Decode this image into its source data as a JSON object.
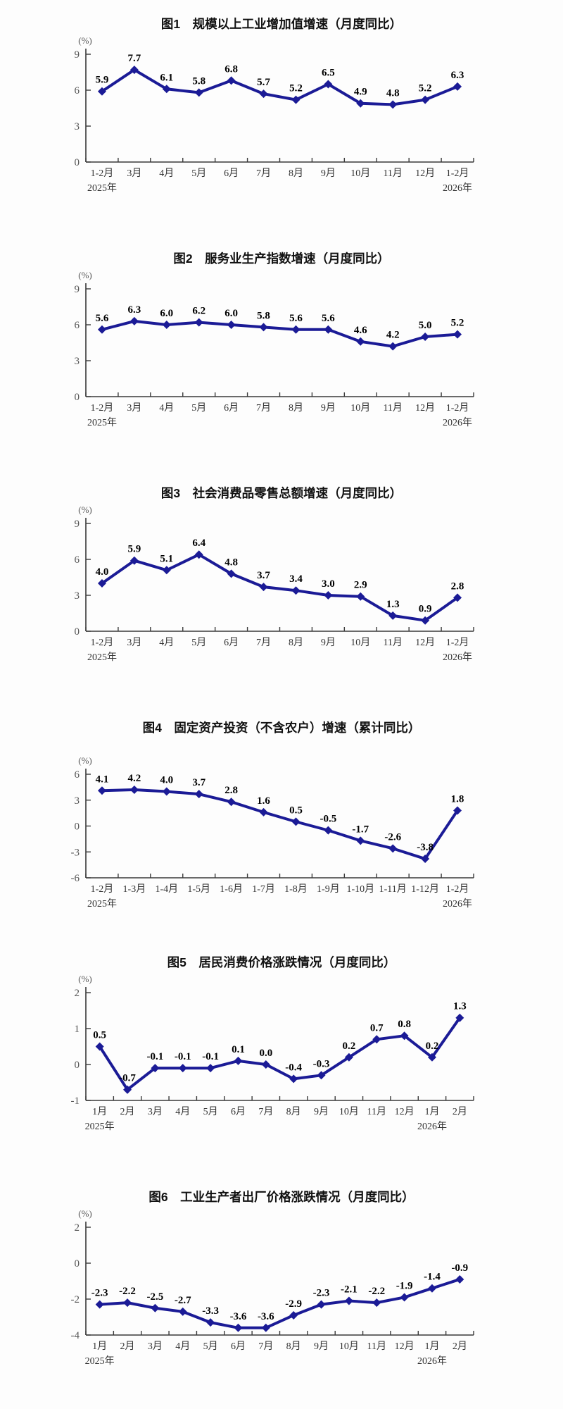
{
  "page": {
    "background": "#fdfdfd",
    "line_color": "#1b1b96",
    "marker": "diamond",
    "axis_color": "#3a3a3a",
    "tick_label_color": "#555555",
    "x_label_color": "#333333",
    "data_label_color": "#000000"
  },
  "chart_data": [
    {
      "type": "line",
      "title": "图1　规模以上工业增加值增速（月度同比）",
      "unit": "(%)",
      "categories": [
        "1-2月",
        "3月",
        "4月",
        "5月",
        "6月",
        "7月",
        "8月",
        "9月",
        "10月",
        "11月",
        "12月",
        "1-2月"
      ],
      "year_labels": [
        {
          "index": 0,
          "text": "2025年"
        },
        {
          "index": 11,
          "text": "2026年"
        }
      ],
      "values": [
        5.9,
        7.7,
        6.1,
        5.8,
        6.8,
        5.7,
        5.2,
        6.5,
        4.9,
        4.8,
        5.2,
        6.3
      ],
      "point_labels": [
        "5.9",
        "7.7",
        "6.1",
        "5.8",
        "6.8",
        "5.7",
        "5.2",
        "6.5",
        "4.9",
        "4.8",
        "5.2",
        "6.3"
      ],
      "y_ticks": [
        9,
        6,
        3,
        0
      ],
      "ylim": [
        0,
        9
      ],
      "grid": false,
      "legend": "none"
    },
    {
      "type": "line",
      "title": "图2　服务业生产指数增速（月度同比）",
      "unit": "(%)",
      "categories": [
        "1-2月",
        "3月",
        "4月",
        "5月",
        "6月",
        "7月",
        "8月",
        "9月",
        "10月",
        "11月",
        "12月",
        "1-2月"
      ],
      "year_labels": [
        {
          "index": 0,
          "text": "2025年"
        },
        {
          "index": 11,
          "text": "2026年"
        }
      ],
      "values": [
        5.6,
        6.3,
        6.0,
        6.2,
        6.0,
        5.8,
        5.6,
        5.6,
        4.6,
        4.2,
        5.0,
        5.2
      ],
      "point_labels": [
        "5.6",
        "6.3",
        "6.0",
        "6.2",
        "6.0",
        "5.8",
        "5.6",
        "5.6",
        "4.6",
        "4.2",
        "5.0",
        "5.2"
      ],
      "y_ticks": [
        9,
        6,
        3,
        0
      ],
      "ylim": [
        0,
        9
      ],
      "grid": false,
      "legend": "none"
    },
    {
      "type": "line",
      "title": "图3　社会消费品零售总额增速（月度同比）",
      "unit": "(%)",
      "categories": [
        "1-2月",
        "3月",
        "4月",
        "5月",
        "6月",
        "7月",
        "8月",
        "9月",
        "10月",
        "11月",
        "12月",
        "1-2月"
      ],
      "year_labels": [
        {
          "index": 0,
          "text": "2025年"
        },
        {
          "index": 11,
          "text": "2026年"
        }
      ],
      "values": [
        4.0,
        5.9,
        5.1,
        6.4,
        4.8,
        3.7,
        3.4,
        3.0,
        2.9,
        1.3,
        0.9,
        2.8
      ],
      "point_labels": [
        "4.0",
        "5.9",
        "5.1",
        "6.4",
        "4.8",
        "3.7",
        "3.4",
        "3.0",
        "2.9",
        "1.3",
        "0.9",
        "2.8"
      ],
      "y_ticks": [
        9,
        6,
        3,
        0
      ],
      "ylim": [
        0,
        9
      ],
      "grid": false,
      "legend": "none"
    },
    {
      "type": "line",
      "title": "图4　固定资产投资（不含农户）增速（累计同比）",
      "unit": "(%)",
      "categories": [
        "1-2月",
        "1-3月",
        "1-4月",
        "1-5月",
        "1-6月",
        "1-7月",
        "1-8月",
        "1-9月",
        "1-10月",
        "1-11月",
        "1-12月",
        "1-2月"
      ],
      "year_labels": [
        {
          "index": 0,
          "text": "2025年"
        },
        {
          "index": 11,
          "text": "2026年"
        }
      ],
      "values": [
        4.1,
        4.2,
        4.0,
        3.7,
        2.8,
        1.6,
        0.5,
        -0.5,
        -1.7,
        -2.6,
        -3.8,
        1.8
      ],
      "point_labels": [
        "4.1",
        "4.2",
        "4.0",
        "3.7",
        "2.8",
        "1.6",
        "0.5",
        "-0.5",
        "-1.7",
        "-2.6",
        "-3.8",
        "1.8"
      ],
      "y_ticks": [
        6,
        3,
        0,
        -3,
        -6
      ],
      "ylim": [
        -6,
        6
      ],
      "grid": false,
      "legend": "none"
    },
    {
      "type": "line",
      "title": "图5　居民消费价格涨跌情况（月度同比）",
      "unit": "(%)",
      "categories": [
        "1月",
        "2月",
        "3月",
        "4月",
        "5月",
        "6月",
        "7月",
        "8月",
        "9月",
        "10月",
        "11月",
        "12月",
        "1月",
        "2月"
      ],
      "year_labels": [
        {
          "index": 0,
          "text": "2025年"
        },
        {
          "index": 12,
          "text": "2026年"
        }
      ],
      "values": [
        0.5,
        -0.7,
        -0.1,
        -0.1,
        -0.1,
        0.1,
        0.0,
        -0.4,
        -0.3,
        0.2,
        0.7,
        0.8,
        0.2,
        1.3
      ],
      "point_labels": [
        "0.5",
        "-0.7",
        "-0.1",
        "-0.1",
        "-0.1",
        "0.1",
        "0.0",
        "-0.4",
        "-0.3",
        "0.2",
        "0.7",
        "0.8",
        "0.2",
        "1.3"
      ],
      "y_ticks": [
        2,
        1,
        0,
        -1
      ],
      "ylim": [
        -1,
        2
      ],
      "grid": false,
      "legend": "none"
    },
    {
      "type": "line",
      "title": "图6　工业生产者出厂价格涨跌情况（月度同比）",
      "unit": "(%)",
      "categories": [
        "1月",
        "2月",
        "3月",
        "4月",
        "5月",
        "6月",
        "7月",
        "8月",
        "9月",
        "10月",
        "11月",
        "12月",
        "1月",
        "2月"
      ],
      "year_labels": [
        {
          "index": 0,
          "text": "2025年"
        },
        {
          "index": 12,
          "text": "2026年"
        }
      ],
      "values": [
        -2.3,
        -2.2,
        -2.5,
        -2.7,
        -3.3,
        -3.6,
        -3.6,
        -2.9,
        -2.3,
        -2.1,
        -2.2,
        -1.9,
        -1.4,
        -0.9
      ],
      "point_labels": [
        "-2.3",
        "-2.2",
        "-2.5",
        "-2.7",
        "-3.3",
        "-3.6",
        "-3.6",
        "-2.9",
        "-2.3",
        "-2.1",
        "-2.2",
        "-1.9",
        "-1.4",
        "-0.9"
      ],
      "y_ticks": [
        2,
        0,
        -2,
        -4
      ],
      "ylim": [
        -4,
        2
      ],
      "grid": false,
      "legend": "none"
    }
  ]
}
